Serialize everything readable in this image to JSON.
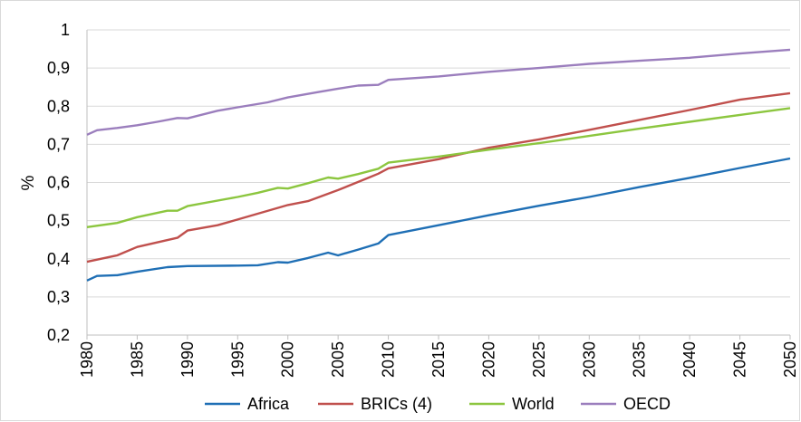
{
  "chart_data": {
    "type": "line",
    "title": "",
    "xlabel": "",
    "ylabel": "%",
    "xlim": [
      1980,
      2050
    ],
    "ylim": [
      0.2,
      1.0
    ],
    "x_ticks": [
      "1980",
      "1985",
      "1990",
      "1995",
      "2000",
      "2005",
      "2010",
      "2015",
      "2020",
      "2025",
      "2030",
      "2035",
      "2040",
      "2045",
      "2050"
    ],
    "y_ticks": [
      "0,2",
      "0,3",
      "0,4",
      "0,5",
      "0,6",
      "0,7",
      "0,8",
      "0,9",
      "1"
    ],
    "grid": "horizontal",
    "legend_position": "bottom",
    "series": [
      {
        "name": "Africa",
        "color": "#1f6fb5",
        "points": [
          [
            1980,
            0.343
          ],
          [
            1981,
            0.355
          ],
          [
            1983,
            0.357
          ],
          [
            1985,
            0.366
          ],
          [
            1988,
            0.378
          ],
          [
            1990,
            0.381
          ],
          [
            1995,
            0.382
          ],
          [
            1997,
            0.383
          ],
          [
            1999,
            0.391
          ],
          [
            2000,
            0.39
          ],
          [
            2002,
            0.402
          ],
          [
            2004,
            0.416
          ],
          [
            2005,
            0.409
          ],
          [
            2007,
            0.424
          ],
          [
            2009,
            0.44
          ],
          [
            2010,
            0.462
          ],
          [
            2015,
            0.488
          ],
          [
            2020,
            0.514
          ],
          [
            2025,
            0.539
          ],
          [
            2030,
            0.562
          ],
          [
            2035,
            0.588
          ],
          [
            2040,
            0.612
          ],
          [
            2045,
            0.638
          ],
          [
            2050,
            0.663
          ]
        ]
      },
      {
        "name": "BRICs (4)",
        "color": "#c0504d",
        "points": [
          [
            1980,
            0.392
          ],
          [
            1983,
            0.409
          ],
          [
            1985,
            0.431
          ],
          [
            1989,
            0.455
          ],
          [
            1990,
            0.474
          ],
          [
            1993,
            0.488
          ],
          [
            1995,
            0.503
          ],
          [
            2000,
            0.541
          ],
          [
            2002,
            0.551
          ],
          [
            2005,
            0.58
          ],
          [
            2008,
            0.612
          ],
          [
            2009,
            0.623
          ],
          [
            2010,
            0.637
          ],
          [
            2015,
            0.661
          ],
          [
            2020,
            0.691
          ],
          [
            2025,
            0.713
          ],
          [
            2030,
            0.738
          ],
          [
            2035,
            0.764
          ],
          [
            2040,
            0.79
          ],
          [
            2045,
            0.817
          ],
          [
            2050,
            0.834
          ]
        ]
      },
      {
        "name": "World",
        "color": "#8cc63f",
        "points": [
          [
            1980,
            0.483
          ],
          [
            1983,
            0.494
          ],
          [
            1985,
            0.509
          ],
          [
            1988,
            0.526
          ],
          [
            1989,
            0.526
          ],
          [
            1990,
            0.538
          ],
          [
            1995,
            0.562
          ],
          [
            1997,
            0.573
          ],
          [
            1999,
            0.586
          ],
          [
            2000,
            0.584
          ],
          [
            2002,
            0.598
          ],
          [
            2004,
            0.613
          ],
          [
            2005,
            0.61
          ],
          [
            2007,
            0.622
          ],
          [
            2009,
            0.636
          ],
          [
            2010,
            0.652
          ],
          [
            2015,
            0.668
          ],
          [
            2020,
            0.686
          ],
          [
            2025,
            0.703
          ],
          [
            2030,
            0.722
          ],
          [
            2035,
            0.741
          ],
          [
            2040,
            0.759
          ],
          [
            2045,
            0.777
          ],
          [
            2050,
            0.795
          ]
        ]
      },
      {
        "name": "OECD",
        "color": "#9b7ebd",
        "points": [
          [
            1980,
            0.725
          ],
          [
            1981,
            0.737
          ],
          [
            1983,
            0.743
          ],
          [
            1985,
            0.75
          ],
          [
            1987,
            0.759
          ],
          [
            1989,
            0.769
          ],
          [
            1990,
            0.768
          ],
          [
            1993,
            0.788
          ],
          [
            1995,
            0.797
          ],
          [
            1998,
            0.81
          ],
          [
            2000,
            0.823
          ],
          [
            2003,
            0.837
          ],
          [
            2005,
            0.846
          ],
          [
            2007,
            0.854
          ],
          [
            2009,
            0.856
          ],
          [
            2010,
            0.869
          ],
          [
            2015,
            0.878
          ],
          [
            2020,
            0.89
          ],
          [
            2025,
            0.9
          ],
          [
            2030,
            0.911
          ],
          [
            2035,
            0.919
          ],
          [
            2040,
            0.927
          ],
          [
            2045,
            0.938
          ],
          [
            2050,
            0.948
          ]
        ]
      }
    ]
  }
}
